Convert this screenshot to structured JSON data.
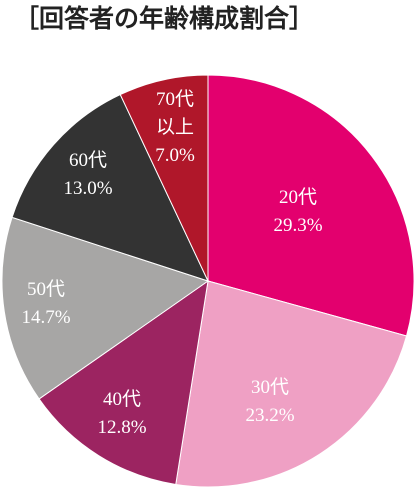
{
  "title": "［回答者の年齢構成割合］",
  "chart_data": {
    "type": "pie",
    "title": "［回答者の年齢構成割合］",
    "slices": [
      {
        "label": "20代",
        "value": 29.3,
        "display": "29.3%",
        "color": "#e3006e",
        "label_lines": [
          "20代",
          "29.3%"
        ]
      },
      {
        "label": "30代",
        "value": 23.2,
        "display": "23.2%",
        "color": "#efa0c4",
        "label_lines": [
          "30代",
          "23.2%"
        ]
      },
      {
        "label": "40代",
        "value": 12.8,
        "display": "12.8%",
        "color": "#9c2461",
        "label_lines": [
          "40代",
          "12.8%"
        ]
      },
      {
        "label": "50代",
        "value": 14.7,
        "display": "14.7%",
        "color": "#a7a6a5",
        "label_lines": [
          "50代",
          "14.7%"
        ]
      },
      {
        "label": "60代",
        "value": 13.0,
        "display": "13.0%",
        "color": "#333333",
        "label_lines": [
          "60代",
          "13.0%"
        ]
      },
      {
        "label": "70代以上",
        "value": 7.0,
        "display": "7.0%",
        "color": "#b0172a",
        "label_lines": [
          "70代",
          "以上",
          "7.0%"
        ]
      }
    ],
    "start": "top",
    "direction": "clockwise",
    "legend": "none"
  }
}
